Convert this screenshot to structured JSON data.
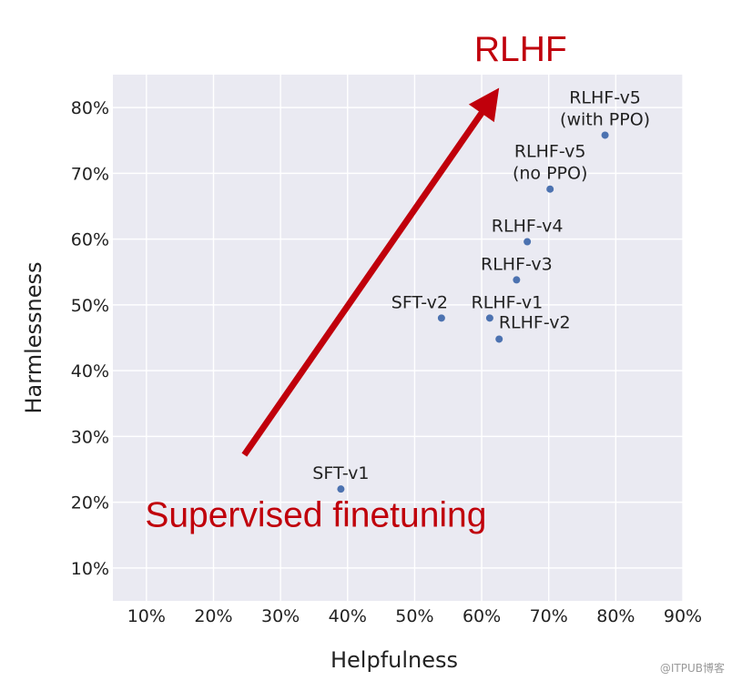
{
  "chart_data": {
    "type": "scatter",
    "xlabel": "Helpfulness",
    "ylabel": "Harmlessness",
    "xlim": [
      5,
      90
    ],
    "ylim": [
      5,
      85
    ],
    "x_ticks": [
      "10%",
      "20%",
      "30%",
      "40%",
      "50%",
      "60%",
      "70%",
      "80%",
      "90%"
    ],
    "y_ticks": [
      "10%",
      "20%",
      "30%",
      "40%",
      "50%",
      "60%",
      "70%",
      "80%"
    ],
    "grid": true,
    "point_color": "#4c72b0",
    "background": "#eaeaf2",
    "points": [
      {
        "label": [
          "SFT-v1"
        ],
        "x": 39,
        "y": 22
      },
      {
        "label": [
          "SFT-v2"
        ],
        "x": 54,
        "y": 48
      },
      {
        "label": [
          "RLHF-v1"
        ],
        "x": 61.2,
        "y": 48
      },
      {
        "label": [
          "RLHF-v2"
        ],
        "x": 62.6,
        "y": 44.8
      },
      {
        "label": [
          "RLHF-v3"
        ],
        "x": 65.2,
        "y": 53.8
      },
      {
        "label": [
          "RLHF-v4"
        ],
        "x": 66.8,
        "y": 59.6
      },
      {
        "label": [
          "RLHF-v5",
          "(no PPO)"
        ],
        "x": 70.2,
        "y": 67.6
      },
      {
        "label": [
          "RLHF-v5",
          "(with PPO)"
        ],
        "x": 78.4,
        "y": 75.8
      }
    ],
    "annotations": {
      "arrow": {
        "from": [
          24.6,
          27.2
        ],
        "to": [
          62.6,
          83.0
        ],
        "color": "#c0000b"
      },
      "rlhf_text": "RLHF",
      "sft_text": "Supervised finetuning",
      "color": "#c0000b"
    }
  },
  "watermark": "@ITPUB博客"
}
